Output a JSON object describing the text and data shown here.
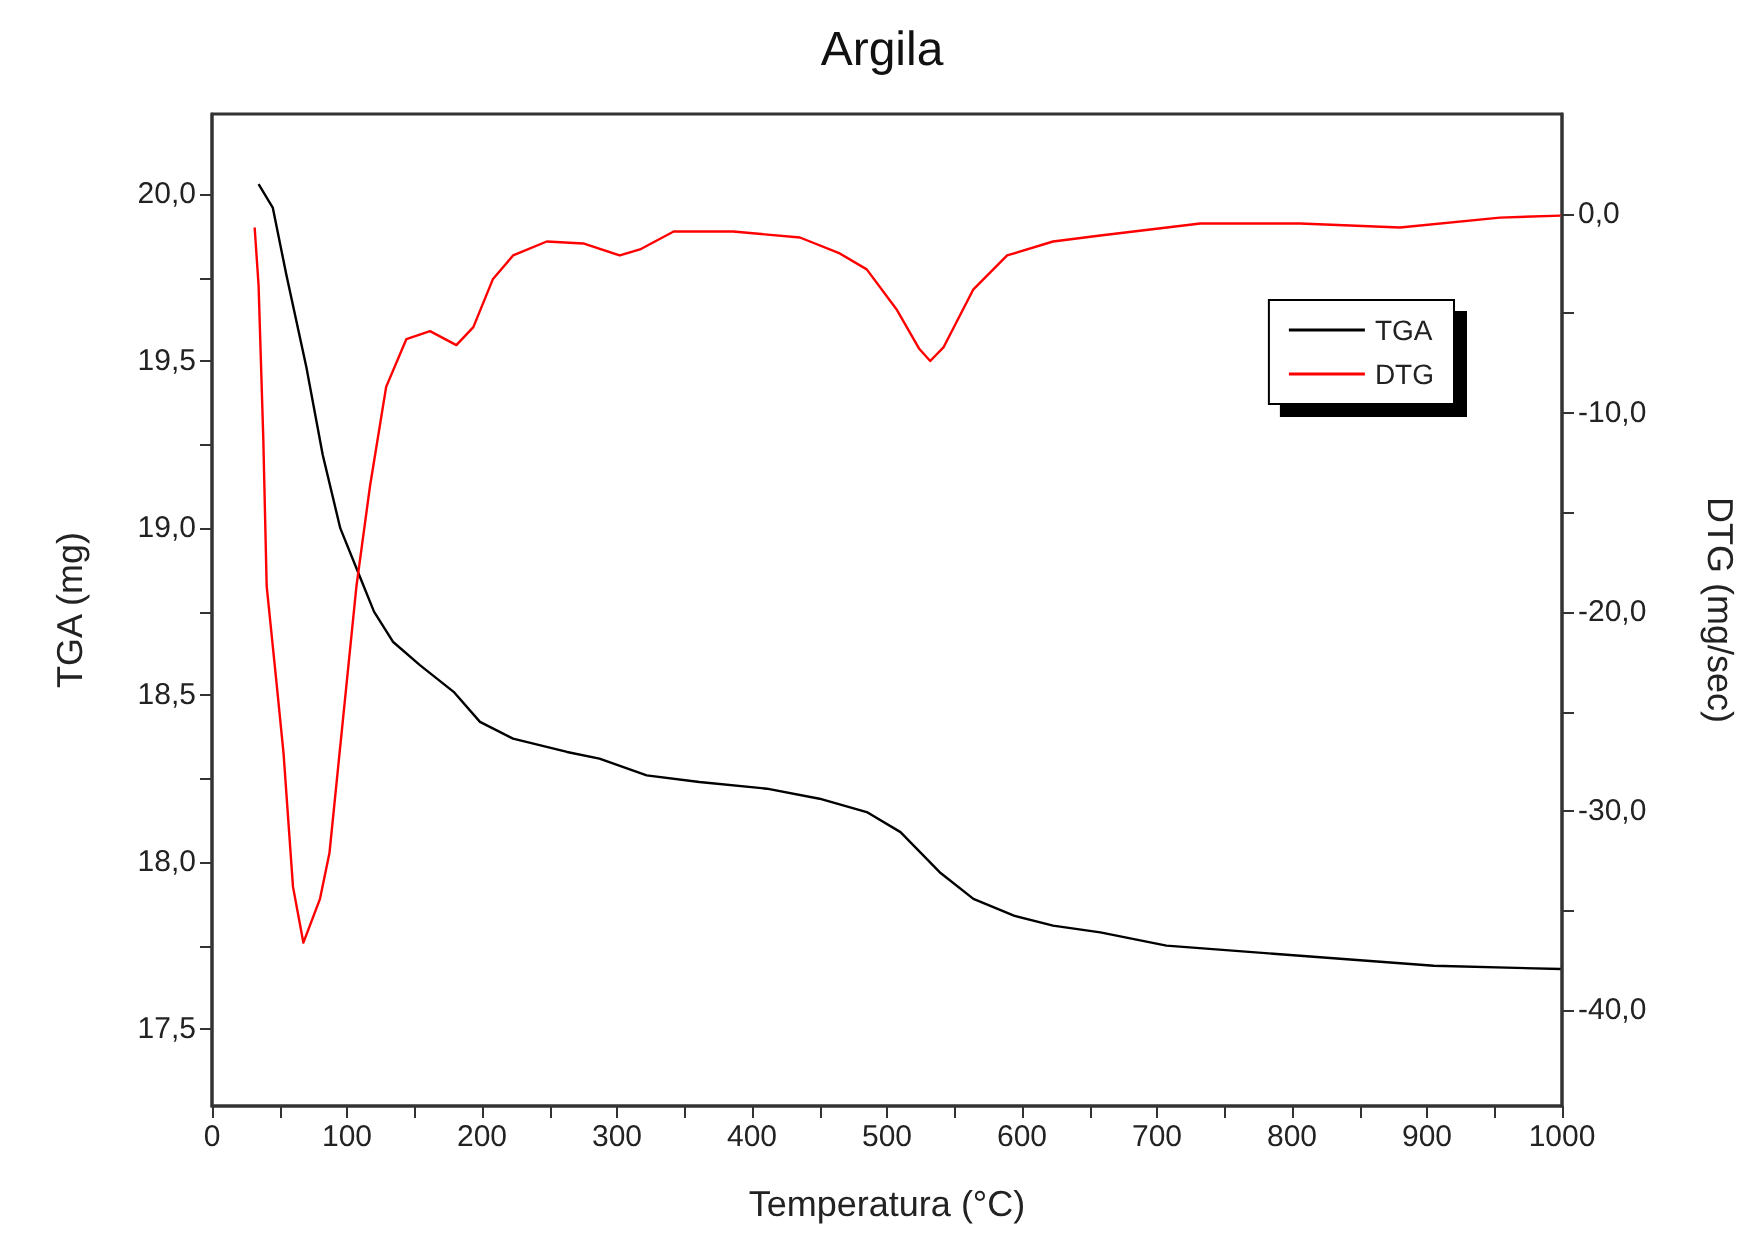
{
  "chart_data": {
    "type": "line",
    "title": "Argila",
    "xlabel": "Temperatura (°C)",
    "ylabel": "TGA (mg)",
    "y2label": "DTG (mg/sec)",
    "xlim": [
      0,
      1000
    ],
    "xticks": [
      0,
      {
        "value": 50,
        "label": null
      },
      100,
      {
        "value": 150,
        "label": null
      },
      200,
      {
        "value": 250,
        "label": null
      },
      300,
      {
        "value": 350,
        "label": null
      },
      400,
      {
        "value": 450,
        "label": null
      },
      500,
      {
        "value": 550,
        "label": null
      },
      600,
      {
        "value": 650,
        "label": null
      },
      700,
      {
        "value": 750,
        "label": null
      },
      800,
      {
        "value": 850,
        "label": null
      },
      900,
      {
        "value": 950,
        "label": null
      },
      1000
    ],
    "ylim": [
      17.27,
      20.24
    ],
    "yticks": [
      {
        "value": 17.5,
        "label": "17,5"
      },
      {
        "value": 17.75,
        "label": null
      },
      {
        "value": 18,
        "label": "18,0"
      },
      {
        "value": 18.25,
        "label": null
      },
      {
        "value": 18.5,
        "label": "18,5"
      },
      {
        "value": 18.75,
        "label": null
      },
      {
        "value": 19,
        "label": "19,0"
      },
      {
        "value": 19.25,
        "label": null
      },
      {
        "value": 19.5,
        "label": "19,5"
      },
      {
        "value": 19.75,
        "label": null
      },
      {
        "value": 20,
        "label": "20,0"
      }
    ],
    "y2lim": [
      -44.8,
      5
    ],
    "y2ticks": [
      {
        "value": -40,
        "label": "-40,0"
      },
      {
        "value": -35,
        "label": null
      },
      {
        "value": -30,
        "label": "-30,0"
      },
      {
        "value": -25,
        "label": null
      },
      {
        "value": -20,
        "label": "-20,0"
      },
      {
        "value": -15,
        "label": null
      },
      {
        "value": -10,
        "label": "-10,0"
      },
      {
        "value": -5,
        "label": null
      },
      {
        "value": 0,
        "label": "0,0"
      }
    ],
    "legend": "top right",
    "series": [
      {
        "name": "TGA",
        "color": "#000000",
        "x": [
          34.5,
          45,
          55,
          70,
          82,
          95,
          110,
          120,
          134,
          154,
          179,
          198.5,
          223,
          263,
          287,
          322,
          361,
          411,
          450,
          485,
          510,
          539,
          564,
          594,
          623,
          658,
          707,
          806,
          905,
          999
        ],
        "values": [
          20.03,
          19.96,
          19.76,
          19.48,
          19.22,
          19.0,
          18.85,
          18.75,
          18.66,
          18.59,
          18.51,
          18.42,
          18.37,
          18.33,
          18.31,
          18.26,
          18.24,
          18.22,
          18.19,
          18.15,
          18.09,
          17.97,
          17.89,
          17.84,
          17.81,
          17.79,
          17.75,
          17.72,
          17.69,
          17.68
        ]
      },
      {
        "name": "DTG",
        "color": "#ff0000",
        "axis": "y2",
        "x": [
          31.6,
          34.5,
          38,
          40.5,
          48,
          53,
          60,
          67.7,
          80,
          87,
          97,
          107,
          117,
          129,
          144,
          161.5,
          181,
          193.6,
          208,
          223,
          248,
          275,
          302,
          317,
          342,
          386,
          435.5,
          465,
          485,
          507,
          524,
          532,
          542,
          564,
          589,
          623,
          658,
          732,
          806,
          880,
          954,
          999
        ],
        "values": [
          -0.7,
          -3.6,
          -11.3,
          -18.7,
          -23.7,
          -27.1,
          -33.8,
          -36.6,
          -34.4,
          -32.1,
          -25.4,
          -18.7,
          -13.7,
          -8.7,
          -6.3,
          -5.9,
          -6.6,
          -5.7,
          -3.3,
          -2.1,
          -1.4,
          -1.5,
          -2.1,
          -1.8,
          -0.9,
          -0.9,
          -1.2,
          -2.0,
          -2.8,
          -4.8,
          -6.8,
          -7.4,
          -6.7,
          -3.8,
          -2.1,
          -1.4,
          -1.1,
          -0.5,
          -0.5,
          -0.7,
          -0.2,
          -0.1
        ]
      }
    ]
  }
}
